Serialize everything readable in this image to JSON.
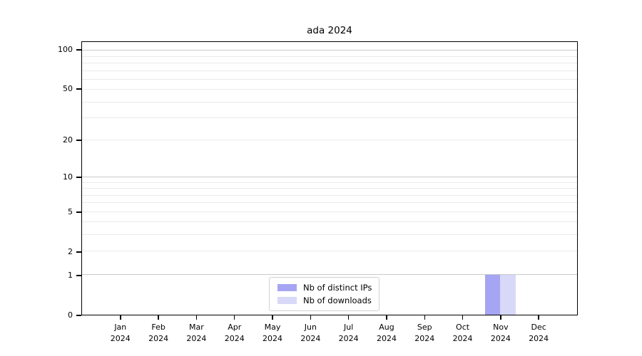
{
  "chart_data": {
    "type": "bar",
    "title": "ada 2024",
    "categories": [
      "Jan",
      "Feb",
      "Mar",
      "Apr",
      "May",
      "Jun",
      "Jul",
      "Aug",
      "Sep",
      "Oct",
      "Nov",
      "Dec"
    ],
    "category_year": "2024",
    "series": [
      {
        "name": "Nb of distinct IPs",
        "color": "#a5a5f3",
        "values": [
          0,
          0,
          0,
          0,
          0,
          0,
          0,
          0,
          0,
          0,
          1,
          0
        ]
      },
      {
        "name": "Nb of downloads",
        "color": "#d8d8f8",
        "values": [
          0,
          0,
          0,
          0,
          0,
          0,
          0,
          0,
          0,
          0,
          1,
          0
        ]
      }
    ],
    "y_ticks": [
      0,
      1,
      2,
      5,
      10,
      20,
      50,
      100
    ],
    "y_major_grid": [
      1,
      10,
      100
    ],
    "y_minor_grid": [
      2,
      3,
      4,
      5,
      6,
      7,
      8,
      9,
      20,
      30,
      40,
      50,
      60,
      70,
      80,
      90
    ],
    "y_scale": "log1p",
    "ylim": [
      0,
      116
    ],
    "grid": true,
    "legend_position": "lower center"
  },
  "colors": {
    "grid_major": "#c9c9c9",
    "grid_minor": "#eaeaea",
    "spine": "#000000",
    "legend_border": "#d2d2d2",
    "background": "#ffffff"
  }
}
